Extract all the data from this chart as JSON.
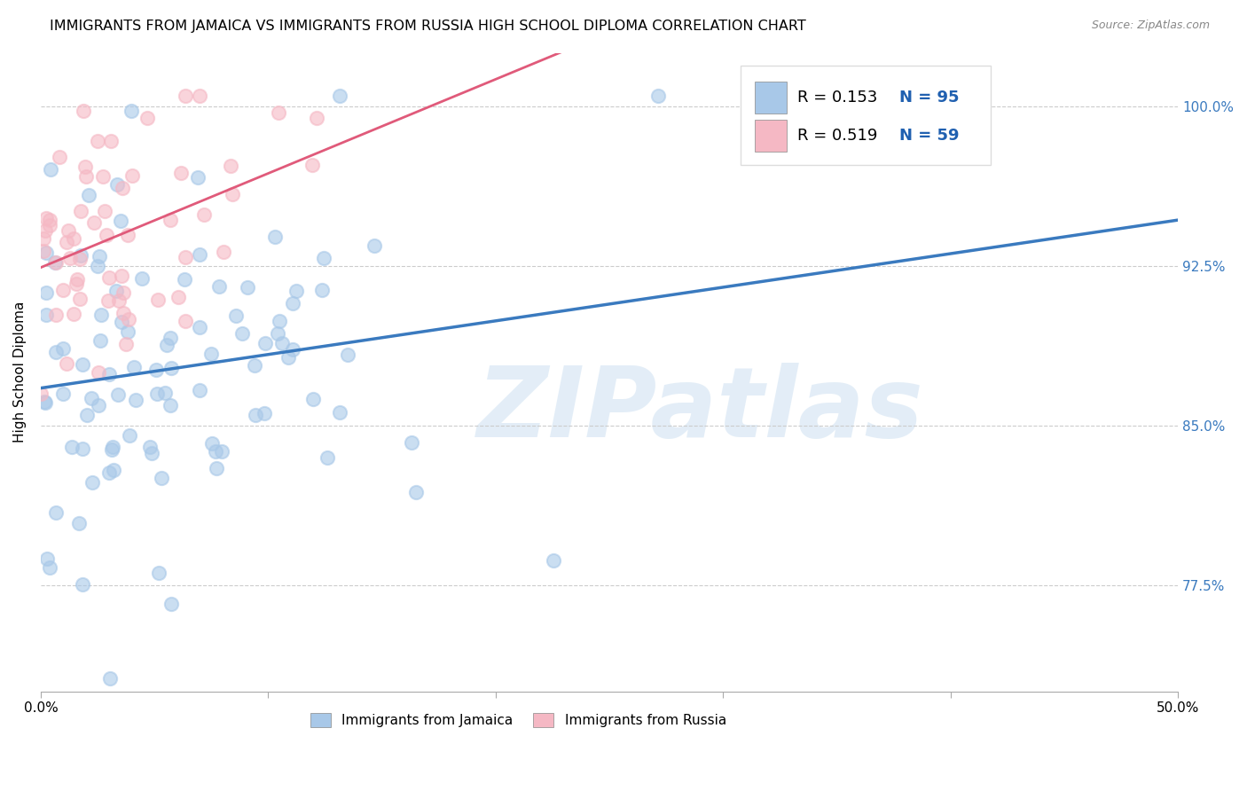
{
  "title": "IMMIGRANTS FROM JAMAICA VS IMMIGRANTS FROM RUSSIA HIGH SCHOOL DIPLOMA CORRELATION CHART",
  "source": "Source: ZipAtlas.com",
  "ylabel": "High School Diploma",
  "ytick_labels": [
    "77.5%",
    "85.0%",
    "92.5%",
    "100.0%"
  ],
  "ytick_values": [
    0.775,
    0.85,
    0.925,
    1.0
  ],
  "xlim": [
    0.0,
    0.5
  ],
  "ylim": [
    0.725,
    1.025
  ],
  "jamaica_color": "#a8c8e8",
  "russia_color": "#f5b8c4",
  "jamaica_line_color": "#3a7abf",
  "russia_line_color": "#e05a7a",
  "jamaica_R": 0.153,
  "jamaica_N": 95,
  "russia_R": 0.519,
  "russia_N": 59,
  "watermark": "ZIPatlas",
  "legend_label_jamaica": "Immigrants from Jamaica",
  "legend_label_russia": "Immigrants from Russia",
  "title_fontsize": 11.5,
  "axis_label_fontsize": 11,
  "tick_label_fontsize": 11,
  "legend_fontsize": 11,
  "rn_fontsize": 13,
  "background_color": "#ffffff",
  "grid_color": "#cccccc",
  "rn_color": "#2060b0",
  "r_text_color": "#000000"
}
